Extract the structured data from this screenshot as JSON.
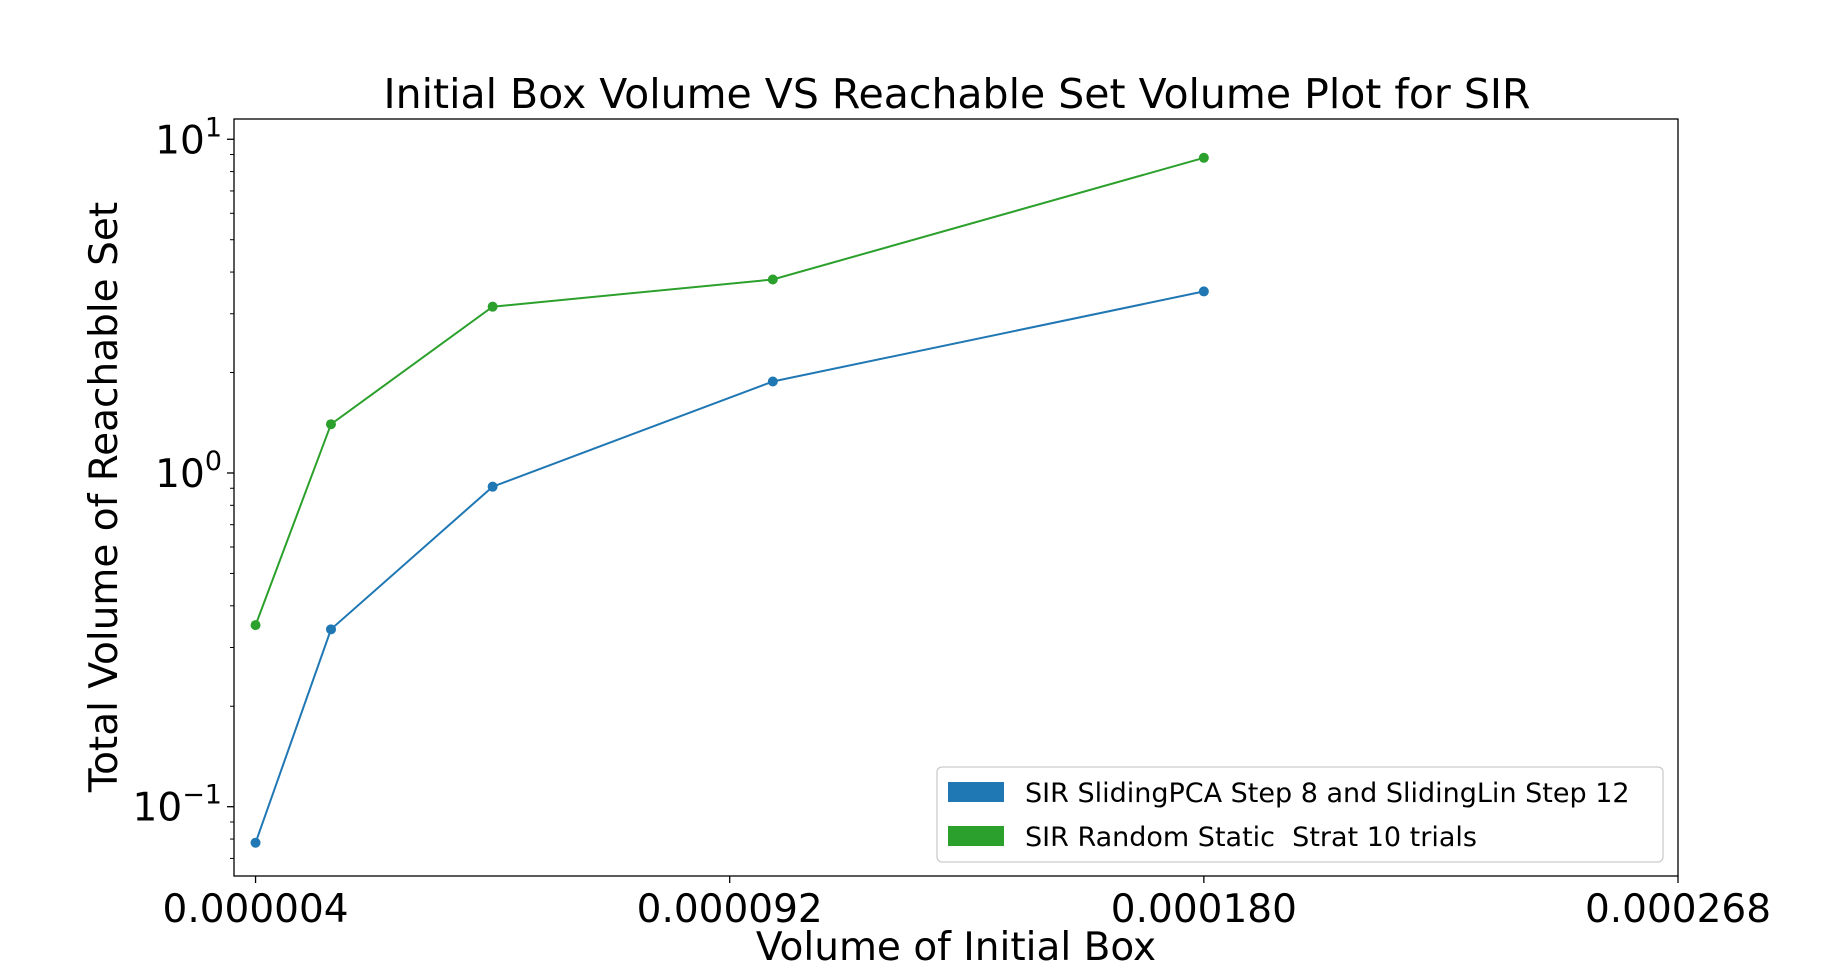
{
  "chart_data": {
    "type": "line",
    "title": "Initial Box Volume VS Reachable Set Volume Plot for SIR",
    "xlabel": "Volume of Initial Box",
    "ylabel": "Total Volume of Reachable Set",
    "xlim": [
      0.0,
      0.000268
    ],
    "ylim": [
      0.062,
      11.5
    ],
    "yscale": "log",
    "x_ticks": [
      {
        "value": 4e-06,
        "label": "0.000004"
      },
      {
        "value": 9.2e-05,
        "label": "0.000092"
      },
      {
        "value": 0.00018,
        "label": "0.000180"
      },
      {
        "value": 0.000268,
        "label": "0.000268"
      }
    ],
    "y_ticks": [
      {
        "value": 0.1,
        "base": "10",
        "exp": "−1"
      },
      {
        "value": 1,
        "base": "10",
        "exp": "0"
      },
      {
        "value": 10,
        "base": "10",
        "exp": "1"
      }
    ],
    "grid": false,
    "legend_position": "lower-right",
    "series": [
      {
        "name": "SIR SlidingPCA Step 8 and SlidingLin Step 12",
        "color": "#1f77b4",
        "x": [
          4e-06,
          1.8e-05,
          4.8e-05,
          0.0001,
          0.00018
        ],
        "y": [
          0.078,
          0.34,
          0.91,
          1.88,
          3.5
        ]
      },
      {
        "name": "SIR Random Static  Strat 10 trials",
        "color": "#2ca02c",
        "x": [
          4e-06,
          1.8e-05,
          4.8e-05,
          0.0001,
          0.00018
        ],
        "y": [
          0.35,
          1.4,
          3.15,
          3.8,
          8.8
        ]
      }
    ]
  }
}
